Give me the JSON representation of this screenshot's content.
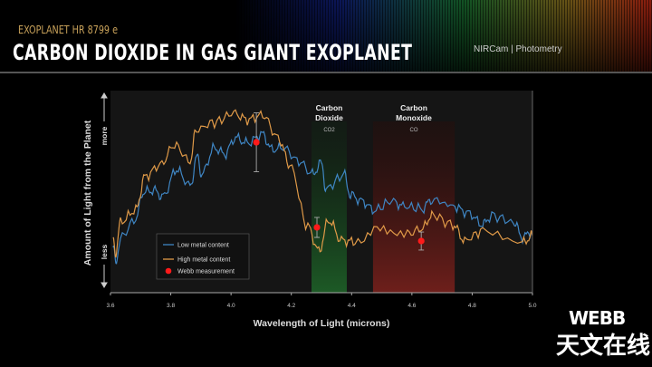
{
  "header": {
    "kicker": "EXOPLANET HR 8799 e",
    "title": "CARBON DIOXIDE IN GAS GIANT EXOPLANET",
    "instrument": "NIRCam | Photometry"
  },
  "watermark": {
    "logo": "WEBB",
    "site": "天文在线"
  },
  "chart_data": {
    "type": "line",
    "title": "",
    "xlabel": "Wavelength of Light (microns)",
    "ylabel": "Amount of Light from the Planet",
    "y_more_label": "more",
    "y_less_label": "less",
    "xlim": [
      3.6,
      5.0
    ],
    "ylim": [
      0,
      1
    ],
    "xticks": [
      "3.6",
      "3.8",
      "4.0",
      "4.2",
      "4.4",
      "4.6",
      "4.8",
      "5.0"
    ],
    "grid": false,
    "legend_position": "bottom-left",
    "bands": [
      {
        "name": "Carbon Dioxide",
        "formula": "CO2",
        "from": 4.267,
        "to": 4.384,
        "color": "#1f5a2a"
      },
      {
        "name": "Carbon Monoxide",
        "formula": "CO",
        "from": 4.471,
        "to": 4.742,
        "color": "#6a1d1a"
      }
    ],
    "series": [
      {
        "name": "Low metal content",
        "color": "#3f86c4",
        "x": [
          3.609,
          3.618,
          3.633,
          3.684,
          3.708,
          3.744,
          3.774,
          3.819,
          3.864,
          3.888,
          3.903,
          3.945,
          3.979,
          4.015,
          4.054,
          4.105,
          4.135,
          4.174,
          4.225,
          4.27,
          4.3,
          4.315,
          4.375,
          4.396,
          4.435,
          4.474,
          4.534,
          4.576,
          4.636,
          4.666,
          4.736,
          4.787,
          4.835,
          4.865,
          4.937,
          4.967,
          5.0
        ],
        "y": [
          0.217,
          0.149,
          0.276,
          0.367,
          0.502,
          0.511,
          0.48,
          0.615,
          0.534,
          0.679,
          0.593,
          0.724,
          0.692,
          0.774,
          0.747,
          0.792,
          0.715,
          0.724,
          0.656,
          0.593,
          0.647,
          0.52,
          0.588,
          0.489,
          0.457,
          0.412,
          0.457,
          0.43,
          0.421,
          0.466,
          0.434,
          0.398,
          0.339,
          0.385,
          0.353,
          0.276,
          0.308
        ]
      },
      {
        "name": "High metal content",
        "color": "#e09a48",
        "x": [
          3.609,
          3.618,
          3.633,
          3.684,
          3.714,
          3.765,
          3.813,
          3.864,
          3.885,
          3.945,
          4.009,
          4.054,
          4.105,
          4.156,
          4.195,
          4.255,
          4.291,
          4.324,
          4.366,
          4.411,
          4.495,
          4.585,
          4.636,
          4.666,
          4.736,
          4.775,
          4.835,
          4.967,
          5.0
        ],
        "y": [
          0.262,
          0.204,
          0.353,
          0.412,
          0.579,
          0.638,
          0.738,
          0.656,
          0.814,
          0.851,
          0.896,
          0.864,
          0.887,
          0.774,
          0.638,
          0.33,
          0.208,
          0.362,
          0.262,
          0.253,
          0.321,
          0.294,
          0.321,
          0.389,
          0.339,
          0.262,
          0.308,
          0.249,
          0.285
        ]
      }
    ],
    "measurements": {
      "name": "Webb measurement",
      "color": "#ff1a1a",
      "points": [
        {
          "x": 4.084,
          "y": 0.751,
          "err": 0.147
        },
        {
          "x": 4.285,
          "y": 0.326,
          "err": 0.05
        },
        {
          "x": 4.631,
          "y": 0.258,
          "err": 0.045
        }
      ]
    }
  }
}
